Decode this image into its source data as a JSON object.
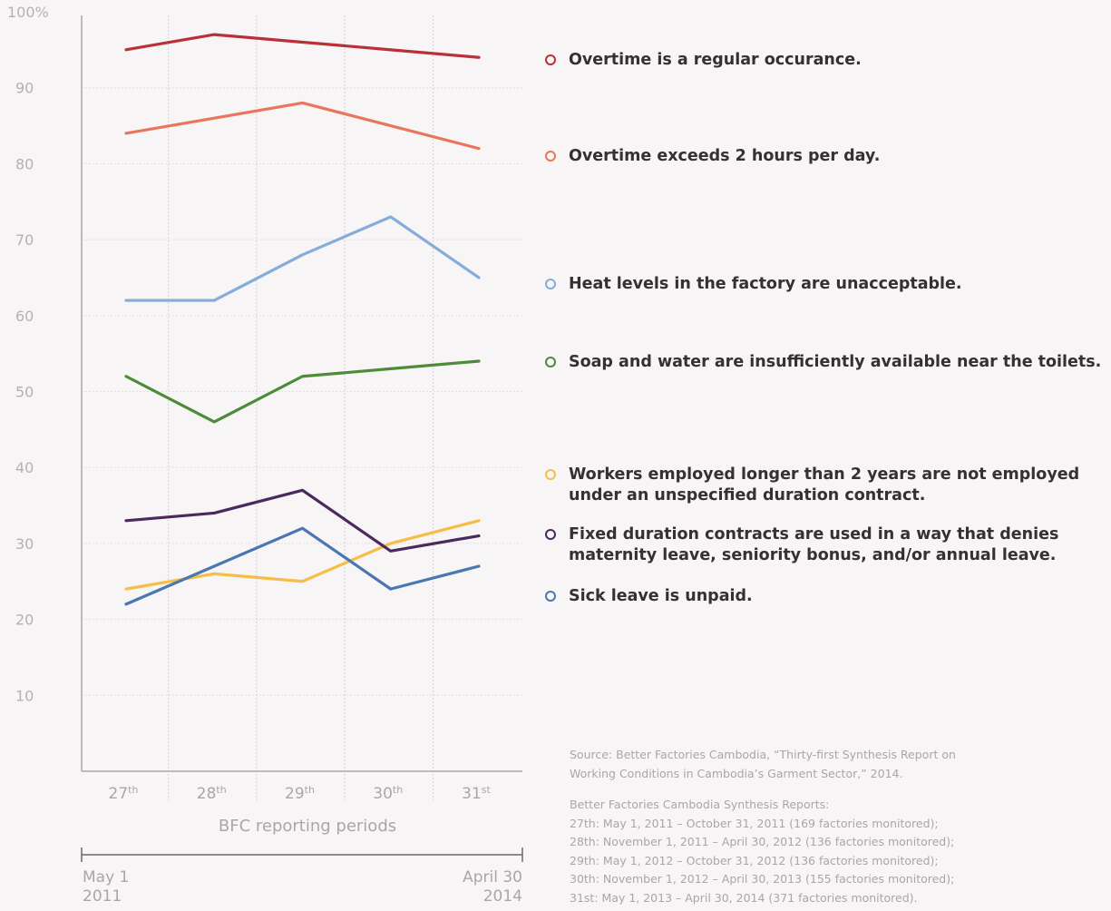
{
  "chart_data": {
    "type": "line",
    "xlabel": "BFC reporting periods",
    "categories": [
      {
        "num": "27",
        "sup": "th"
      },
      {
        "num": "28",
        "sup": "th"
      },
      {
        "num": "29",
        "sup": "th"
      },
      {
        "num": "30",
        "sup": "th"
      },
      {
        "num": "31",
        "sup": "st"
      }
    ],
    "ylim": [
      0,
      100
    ],
    "yticks": [
      {
        "value": 100,
        "label": "100%"
      },
      {
        "value": 90,
        "label": "90"
      },
      {
        "value": 80,
        "label": "80"
      },
      {
        "value": 70,
        "label": "70"
      },
      {
        "value": 60,
        "label": "60"
      },
      {
        "value": 50,
        "label": "50"
      },
      {
        "value": 40,
        "label": "40"
      },
      {
        "value": 30,
        "label": "30"
      },
      {
        "value": 20,
        "label": "20"
      },
      {
        "value": 10,
        "label": "10"
      }
    ],
    "grid": true,
    "legend_position": "right",
    "series": [
      {
        "name": "Overtime is a regular occurance.",
        "color": "#b93038",
        "values": [
          95,
          97,
          96,
          95,
          94
        ]
      },
      {
        "name": "Overtime exceeds 2 hours per day.",
        "color": "#e8765c",
        "values": [
          84,
          86,
          88,
          85,
          82
        ]
      },
      {
        "name": "Heat levels in the factory are unacceptable.",
        "color": "#86acd9",
        "values": [
          62,
          62,
          68,
          73,
          65
        ]
      },
      {
        "name": "Soap and water are insufficiently available near the toilets.",
        "color": "#4d8b3a",
        "values": [
          52,
          46,
          52,
          53,
          54
        ]
      },
      {
        "name": "Workers employed longer than 2 years are not employed under an unspecified duration contract.",
        "color": "#f6be44",
        "values": [
          24,
          26,
          25,
          30,
          33
        ]
      },
      {
        "name": "Fixed duration contracts are used in a way that denies maternity leave, seniority bonus, and/or annual leave.",
        "color": "#4a2a5e",
        "values": [
          33,
          34,
          37,
          29,
          31
        ]
      },
      {
        "name": "Sick leave is unpaid.",
        "color": "#4a76b2",
        "values": [
          22,
          27,
          32,
          24,
          27
        ]
      }
    ]
  },
  "timeline": {
    "start_line1": "May 1",
    "start_line2": "2011",
    "end_line1": "April 30",
    "end_line2": "2014"
  },
  "legend": {
    "items": [
      {
        "lines": [
          "Overtime is a regular occurance."
        ]
      },
      {
        "lines": [
          "Overtime exceeds 2 hours per day."
        ]
      },
      {
        "lines": [
          "Heat levels in the factory are unacceptable."
        ]
      },
      {
        "lines": [
          "Soap and water are insufficiently available near the toilets."
        ]
      },
      {
        "lines": [
          "Workers employed longer than 2 years are not employed",
          "under an unspecified duration contract."
        ]
      },
      {
        "lines": [
          "Fixed duration contracts are used in a way that denies",
          "maternity leave, seniority bonus, and/or annual leave."
        ]
      },
      {
        "lines": [
          "Sick leave is unpaid."
        ]
      }
    ]
  },
  "source": {
    "line1": "Source: Better Factories Cambodia, “Thirty-first Synthesis Report on",
    "line2": "Working Conditions in Cambodia’s Garment Sector,” 2014."
  },
  "reports": {
    "heading": "Better Factories Cambodia Synthesis Reports:",
    "items": [
      "27th: May 1, 2011 – October 31, 2011 (169 factories monitored);",
      "28th: November 1, 2011 – April 30, 2012 (136 factories monitored);",
      "29th: May 1, 2012 – October 31, 2012 (136 factories monitored);",
      "30th: November 1, 2012 –  April 30, 2013 (155 factories monitored);",
      "31st: May 1, 2013 – April 30, 2014 (371 factories monitored)."
    ]
  }
}
